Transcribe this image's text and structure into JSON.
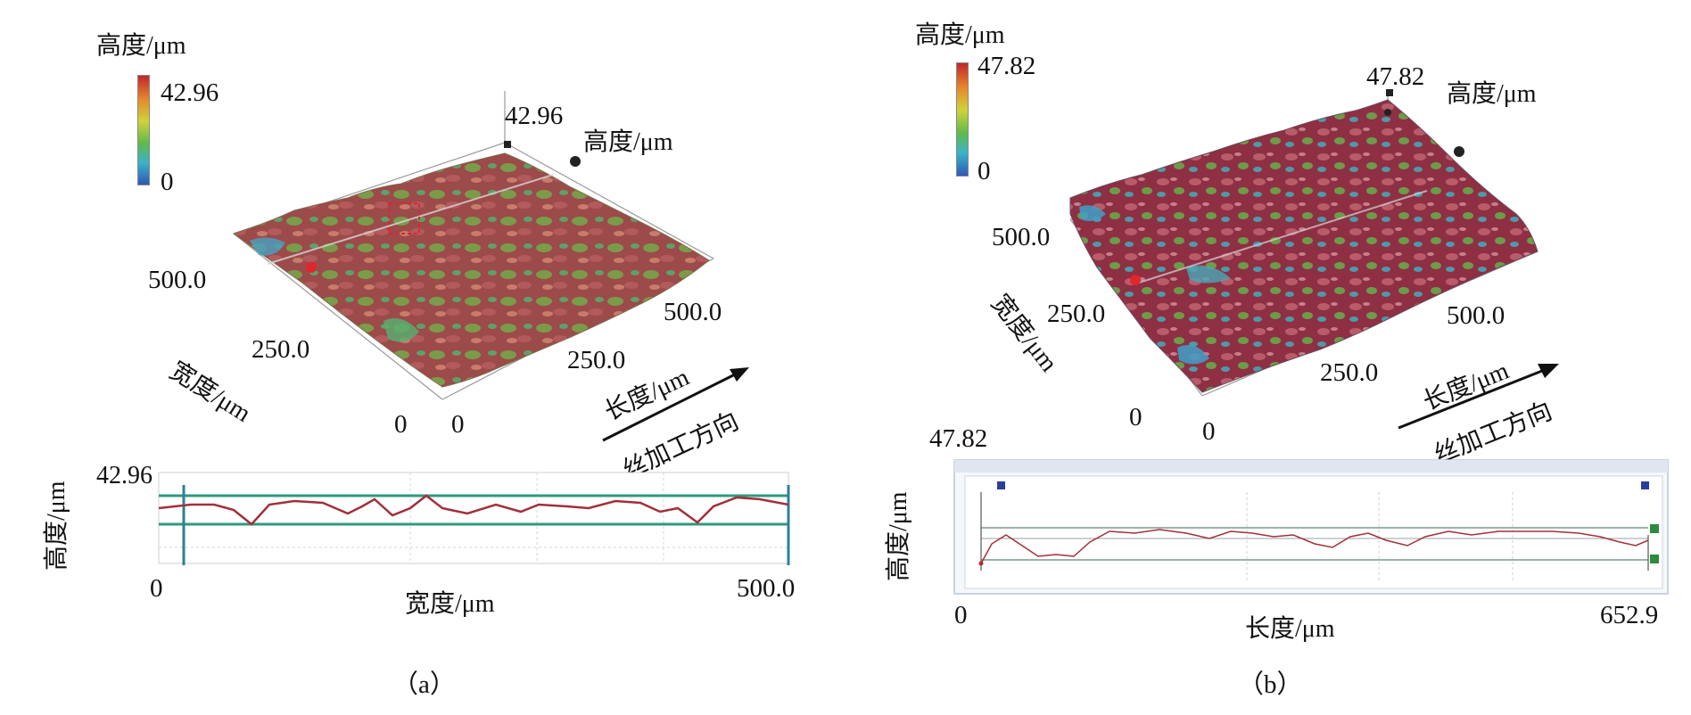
{
  "panel_a": {
    "caption": "（a）",
    "colorbar": {
      "title": "高度/μm",
      "max": "42.96",
      "min": "0"
    },
    "surface": {
      "peak_label": "42.96",
      "height_axis": "高度/μm",
      "width_axis": "宽度/μm",
      "width_ticks": [
        "500.0",
        "250.0",
        "0"
      ],
      "length_axis": "长度/μm",
      "length_ticks": [
        "500.0",
        "250.0",
        "0"
      ],
      "direction_label": "丝加工方向"
    },
    "profile": {
      "ylabel": "高度/μm",
      "ymax": "42.96",
      "xlabel": "宽度/μm",
      "xmin": "0",
      "xmax": "500.0"
    }
  },
  "panel_b": {
    "caption": "（b）",
    "colorbar": {
      "title": "高度/μm",
      "max": "47.82",
      "min": "0"
    },
    "surface": {
      "peak_label": "47.82",
      "height_axis": "高度/μm",
      "width_axis": "宽度/μm",
      "width_ticks": [
        "500.0",
        "250.0",
        "0"
      ],
      "length_axis": "长度/μm",
      "length_ticks": [
        "500.0",
        "250.0",
        "0"
      ],
      "direction_label": "丝加工方向"
    },
    "profile": {
      "ylabel": "高度/μm",
      "ymax": "47.82",
      "xlabel": "长度/μm",
      "xmin": "0",
      "xmax": "652.9"
    }
  },
  "colors": {
    "surface_red": "#a23a4a",
    "surface_green": "#6fa64a",
    "surface_blue": "#3b8fc4",
    "profile_line": "#a1303a",
    "profile_guide": "#2f9a7c",
    "marker_red": "#e0262a"
  }
}
